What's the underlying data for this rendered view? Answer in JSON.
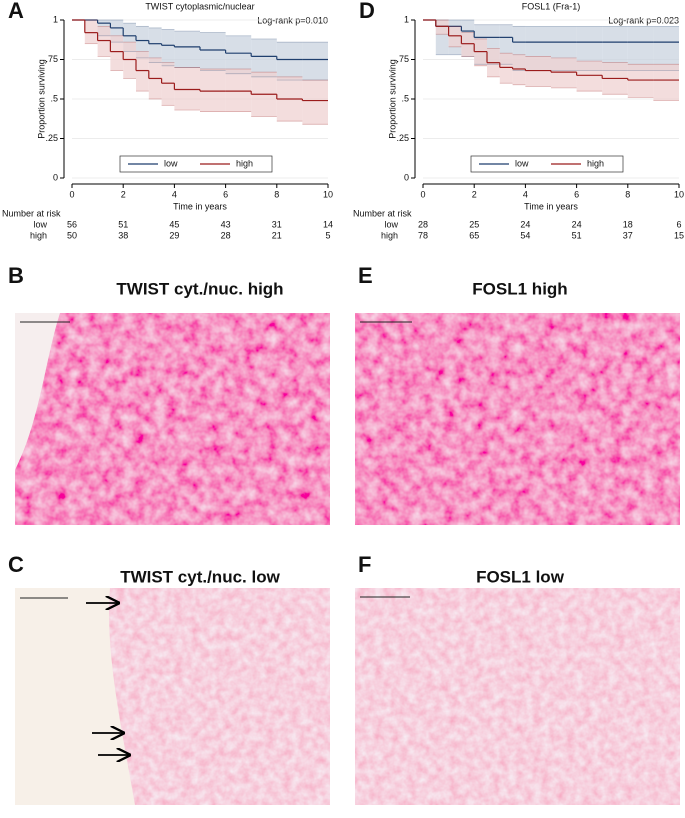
{
  "chart_data": [
    {
      "type": "survival",
      "panel": "A",
      "title": "TWIST cytoplasmic/nuclear",
      "annotation": "Log-rank p=0.010",
      "x_label": "Time in years",
      "y_label": "Proportion surviving",
      "grid": true,
      "legend": "bottom",
      "xlim": [
        0,
        10
      ],
      "xticks": [
        0,
        2,
        4,
        6,
        8,
        10
      ],
      "ylim": [
        0,
        1
      ],
      "yticks": [
        0,
        {
          "value": 0.25,
          "label": ".25"
        },
        {
          "value": 0.5,
          "label": ".5"
        },
        {
          "value": 0.75,
          "label": ".75"
        },
        1
      ],
      "x": [
        0,
        0.5,
        1,
        1.5,
        2,
        2.5,
        3,
        3.5,
        4,
        5,
        6,
        7,
        8,
        9
      ],
      "risk_table_title": "Number at risk",
      "series": [
        {
          "name": "low",
          "color": "#1f3f6e",
          "band_color": "#c9d3df",
          "values": [
            1,
            1,
            0.98,
            0.95,
            0.9,
            0.87,
            0.85,
            0.84,
            0.83,
            0.81,
            0.79,
            0.77,
            0.75,
            0.75
          ],
          "ci_upper": [
            1,
            1,
            1,
            1,
            0.98,
            0.96,
            0.95,
            0.94,
            0.93,
            0.92,
            0.9,
            0.88,
            0.86,
            0.86
          ],
          "ci_lower": [
            1,
            1,
            0.9,
            0.86,
            0.8,
            0.76,
            0.73,
            0.71,
            0.7,
            0.68,
            0.66,
            0.64,
            0.62,
            0.62
          ],
          "at_risk": [
            56,
            51,
            45,
            43,
            31,
            14
          ]
        },
        {
          "name": "high",
          "color": "#9b1c1c",
          "band_color": "#efd2d2",
          "values": [
            1,
            0.92,
            0.87,
            0.8,
            0.75,
            0.68,
            0.63,
            0.6,
            0.56,
            0.55,
            0.55,
            0.53,
            0.5,
            0.49
          ],
          "ci_upper": [
            1,
            1,
            0.96,
            0.9,
            0.86,
            0.8,
            0.76,
            0.73,
            0.7,
            0.69,
            0.69,
            0.67,
            0.64,
            0.62
          ],
          "ci_lower": [
            1,
            0.85,
            0.77,
            0.68,
            0.63,
            0.55,
            0.5,
            0.46,
            0.43,
            0.42,
            0.42,
            0.39,
            0.36,
            0.34
          ],
          "at_risk": [
            50,
            38,
            29,
            28,
            21,
            5
          ]
        }
      ]
    },
    {
      "type": "survival",
      "panel": "D",
      "title": "FOSL1 (Fra-1)",
      "annotation": "Log-rank p=0.023",
      "x_label": "Time in years",
      "y_label": "Proportion surviving",
      "grid": true,
      "legend": "bottom",
      "xlim": [
        0,
        10
      ],
      "xticks": [
        0,
        2,
        4,
        6,
        8,
        10
      ],
      "ylim": [
        0,
        1
      ],
      "yticks": [
        0,
        {
          "value": 0.25,
          "label": ".25"
        },
        {
          "value": 0.5,
          "label": ".5"
        },
        {
          "value": 0.75,
          "label": ".75"
        },
        1
      ],
      "x": [
        0,
        0.5,
        1,
        1.5,
        2,
        2.5,
        3,
        3.5,
        4,
        5,
        6,
        7,
        8,
        9
      ],
      "risk_table_title": "Number at risk",
      "series": [
        {
          "name": "low",
          "color": "#1f3f6e",
          "band_color": "#c9d3df",
          "values": [
            1,
            0.96,
            0.96,
            0.93,
            0.89,
            0.89,
            0.89,
            0.86,
            0.86,
            0.86,
            0.86,
            0.86,
            0.86,
            0.86
          ],
          "ci_upper": [
            1,
            1,
            1,
            1,
            0.97,
            0.97,
            0.97,
            0.96,
            0.96,
            0.96,
            0.96,
            0.96,
            0.96,
            0.96
          ],
          "ci_lower": [
            1,
            0.78,
            0.78,
            0.77,
            0.72,
            0.72,
            0.72,
            0.68,
            0.68,
            0.68,
            0.68,
            0.68,
            0.68,
            0.68
          ],
          "at_risk": [
            28,
            25,
            24,
            24,
            18,
            6
          ]
        },
        {
          "name": "high",
          "color": "#9b1c1c",
          "band_color": "#efd2d2",
          "values": [
            1,
            0.96,
            0.9,
            0.85,
            0.8,
            0.73,
            0.7,
            0.69,
            0.68,
            0.67,
            0.65,
            0.63,
            0.62,
            0.62
          ],
          "ci_upper": [
            1,
            1,
            0.96,
            0.92,
            0.88,
            0.82,
            0.79,
            0.78,
            0.77,
            0.76,
            0.74,
            0.73,
            0.72,
            0.72
          ],
          "ci_lower": [
            1,
            0.91,
            0.83,
            0.77,
            0.71,
            0.64,
            0.6,
            0.59,
            0.58,
            0.57,
            0.55,
            0.53,
            0.51,
            0.49
          ],
          "at_risk": [
            78,
            65,
            54,
            51,
            37,
            15
          ]
        }
      ]
    }
  ],
  "panels": [
    {
      "label": "B",
      "title": "TWIST cyt./nuc. high"
    },
    {
      "label": "E",
      "title": "FOSL1 high"
    },
    {
      "label": "C",
      "title": "TWIST cyt./nuc. low"
    },
    {
      "label": "F",
      "title": "FOSL1 low"
    }
  ]
}
